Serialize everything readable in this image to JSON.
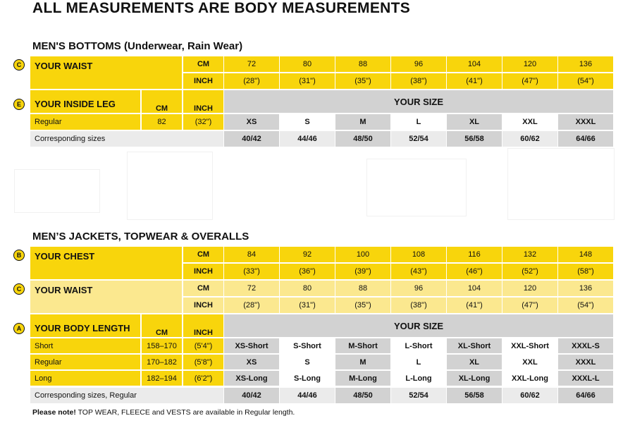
{
  "title": "ALL MEASUREMENTS ARE BODY MEASUREMENTS",
  "bottoms": {
    "heading": "MEN'S BOTTOMS (Underwear, Rain Wear)",
    "waist": {
      "badge": "C",
      "label": "YOUR WAIST",
      "cm_label": "CM",
      "inch_label": "INCH",
      "cm": [
        "72",
        "80",
        "88",
        "96",
        "104",
        "120",
        "136"
      ],
      "inch": [
        "(28\")",
        "(31\")",
        "(35\")",
        "(38\")",
        "(41\")",
        "(47\")",
        "(54\")"
      ]
    },
    "inside_leg": {
      "badge": "E",
      "label": "YOUR INSIDE LEG",
      "cm_label": "CM",
      "inch_label": "INCH",
      "size_heading": "YOUR SIZE",
      "row_label": "Regular",
      "cm": "82",
      "inch": "(32\")",
      "sizes": [
        "XS",
        "S",
        "M",
        "L",
        "XL",
        "XXL",
        "XXXL"
      ]
    },
    "corresponding": {
      "label": "Corresponding sizes",
      "values": [
        "40/42",
        "44/46",
        "48/50",
        "52/54",
        "56/58",
        "60/62",
        "64/66"
      ]
    }
  },
  "jackets": {
    "heading": "MEN’S JACKETS, TOPWEAR & OVERALLS",
    "chest": {
      "badge": "B",
      "label": "YOUR CHEST",
      "cm_label": "CM",
      "inch_label": "INCH",
      "cm": [
        "84",
        "92",
        "100",
        "108",
        "116",
        "132",
        "148"
      ],
      "inch": [
        "(33\")",
        "(36\")",
        "(39\")",
        "(43\")",
        "(46\")",
        "(52\")",
        "(58\")"
      ]
    },
    "waist": {
      "badge": "C",
      "label": "YOUR WAIST",
      "cm_label": "CM",
      "inch_label": "INCH",
      "cm": [
        "72",
        "80",
        "88",
        "96",
        "104",
        "120",
        "136"
      ],
      "inch": [
        "(28\")",
        "(31\")",
        "(35\")",
        "(38\")",
        "(41\")",
        "(47\")",
        "(54\")"
      ]
    },
    "body_length": {
      "badge": "A",
      "label": "YOUR BODY LENGTH",
      "cm_label": "CM",
      "inch_label": "INCH",
      "size_heading": "YOUR SIZE",
      "rows": [
        {
          "label": "Short",
          "cm": "158–170",
          "inch": "(5'4\")",
          "sizes": [
            "XS-Short",
            "S-Short",
            "M-Short",
            "L-Short",
            "XL-Short",
            "XXL-Short",
            "XXXL-S"
          ]
        },
        {
          "label": "Regular",
          "cm": "170–182",
          "inch": "(5'8\")",
          "sizes": [
            "XS",
            "S",
            "M",
            "L",
            "XL",
            "XXL",
            "XXXL"
          ]
        },
        {
          "label": "Long",
          "cm": "182–194",
          "inch": "(6'2\")",
          "sizes": [
            "XS-Long",
            "S-Long",
            "M-Long",
            "L-Long",
            "XL-Long",
            "XXL-Long",
            "XXXL-L"
          ]
        }
      ]
    },
    "corresponding": {
      "label": "Corresponding sizes, Regular",
      "values": [
        "40/42",
        "44/46",
        "48/50",
        "52/54",
        "56/58",
        "60/62",
        "64/66"
      ]
    }
  },
  "note": {
    "bold": "Please note!",
    "text": " TOP WEAR, FLEECE and VESTS are available in Regular length."
  }
}
